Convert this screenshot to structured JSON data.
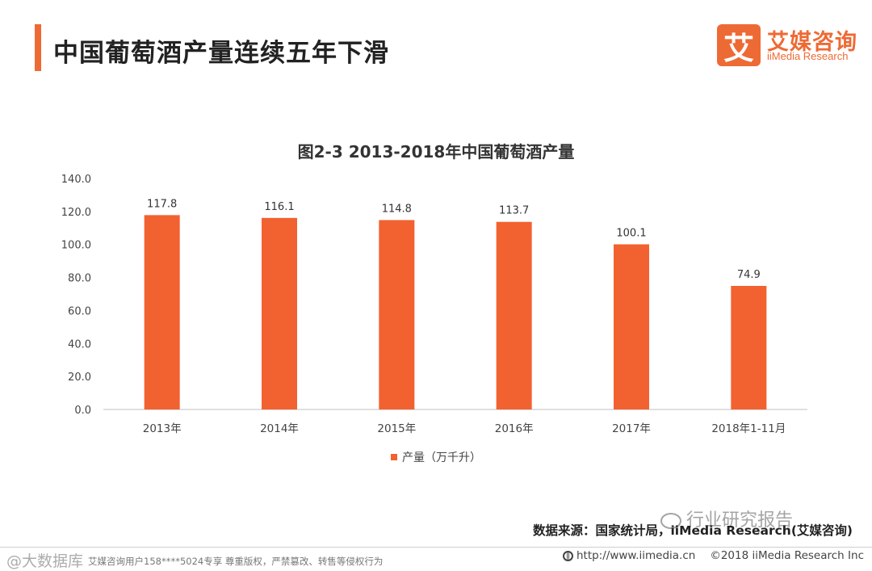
{
  "header": {
    "title": "中国葡萄酒产量连续五年下滑"
  },
  "logo": {
    "mark": "艾",
    "name_cn": "艾媒咨询",
    "name_en": "iiMedia Research"
  },
  "chart_data": {
    "type": "bar",
    "title": "图2-3 2013-2018年中国葡萄酒产量",
    "categories": [
      "2013年",
      "2014年",
      "2015年",
      "2016年",
      "2017年",
      "2018年1-11月"
    ],
    "series": [
      {
        "name": "产量（万千升）",
        "values": [
          117.8,
          116.1,
          114.8,
          113.7,
          100.1,
          74.9
        ],
        "color": "#F26130"
      }
    ],
    "value_labels": [
      "117.8",
      "116.1",
      "114.8",
      "113.7",
      "100.1",
      "74.9"
    ],
    "yticks": [
      "0.0",
      "20.0",
      "40.0",
      "60.0",
      "80.0",
      "100.0",
      "120.0",
      "140.0"
    ],
    "ylim": [
      0,
      140
    ],
    "xlabel": "",
    "ylabel": "",
    "legend_position": "bottom-center",
    "grid": false
  },
  "source": "数据来源：国家统计局，iiMedia Research(艾媒咨询)",
  "watermark": {
    "channel": "行业研究报告",
    "corner": "@大数据库"
  },
  "footer": {
    "notice": "艾媒咨询用户158****5024专享 尊重版权，严禁篡改、转售等侵权行为",
    "url": "http://www.iimedia.cn",
    "copyright": "©2018  iiMedia Research  Inc"
  }
}
